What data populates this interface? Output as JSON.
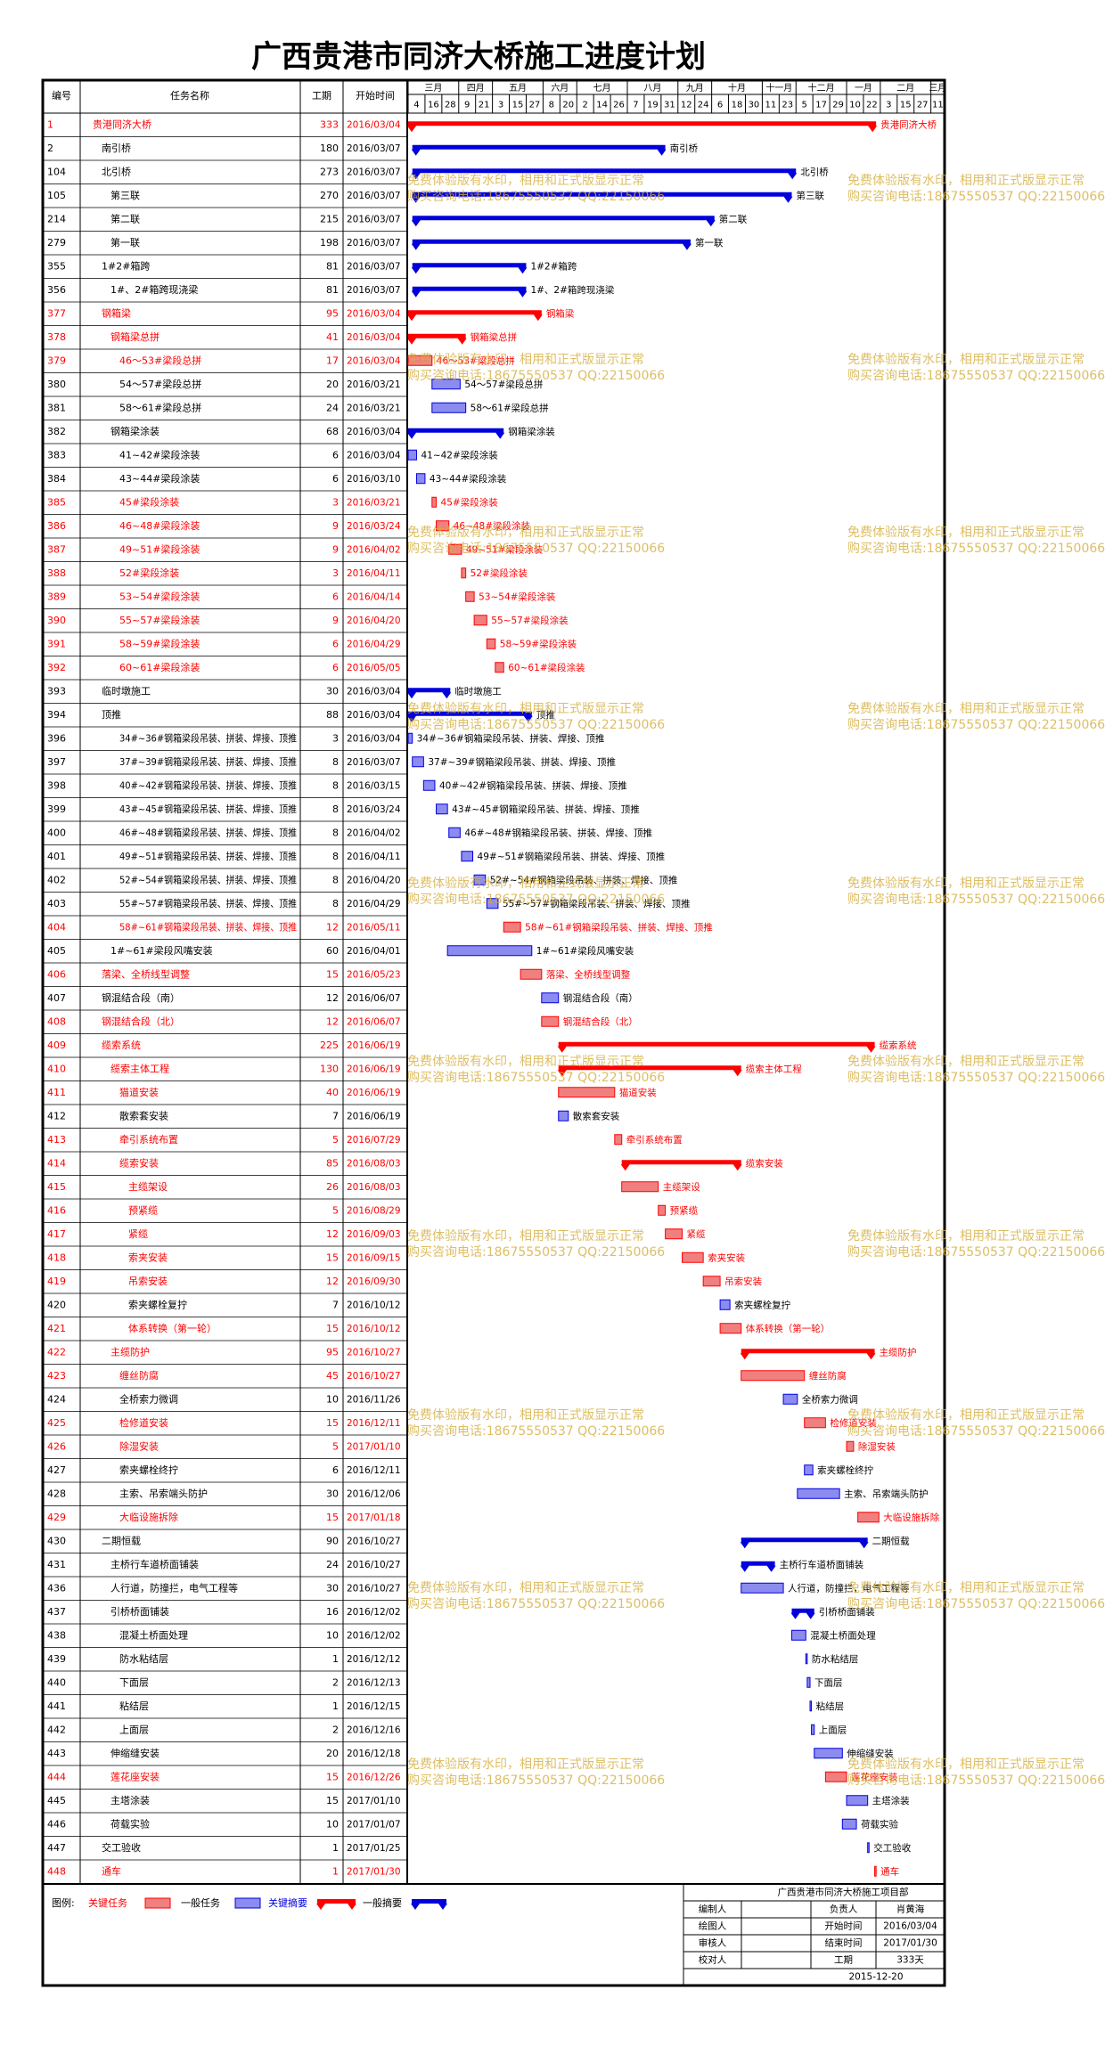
{
  "chart_data": {
    "type": "gantt",
    "title": "广西贵港市同济大桥施工进度计划",
    "columns": [
      "编号",
      "任务名称",
      "工期",
      "开始时间"
    ],
    "colors": {
      "critical": "#ff0000",
      "normal": "#0000dd",
      "critical_fill": "#f08080",
      "normal_fill": "#8c8cf0"
    },
    "timeline": {
      "months": [
        {
          "name": "三月",
          "days": [
            4,
            16,
            28
          ]
        },
        {
          "name": "四月",
          "days": [
            9,
            21
          ]
        },
        {
          "name": "五月",
          "days": [
            3,
            15,
            27
          ]
        },
        {
          "name": "六月",
          "days": [
            8,
            20
          ]
        },
        {
          "name": "七月",
          "days": [
            2,
            14,
            26
          ]
        },
        {
          "name": "八月",
          "days": [
            7,
            19,
            31
          ]
        },
        {
          "name": "九月",
          "days": [
            12,
            24
          ]
        },
        {
          "name": "十月",
          "days": [
            6,
            18,
            30
          ]
        },
        {
          "name": "十一月",
          "days": [
            11,
            23
          ]
        },
        {
          "name": "十二月",
          "days": [
            5,
            17,
            29
          ]
        },
        {
          "name": "一月",
          "days": [
            10,
            22
          ]
        },
        {
          "name": "二月",
          "days": [
            3,
            15,
            27
          ]
        },
        {
          "name": "三月",
          "days": [
            11
          ]
        }
      ]
    },
    "tasks": [
      {
        "id": 1,
        "name": "贵港同济大桥",
        "duration": 333,
        "start": "2016/03/04",
        "level": 0,
        "critical": true,
        "summary": true
      },
      {
        "id": 2,
        "name": "南引桥",
        "duration": 180,
        "start": "2016/03/07",
        "level": 1,
        "critical": false,
        "summary": true
      },
      {
        "id": 104,
        "name": "北引桥",
        "duration": 273,
        "start": "2016/03/07",
        "level": 1,
        "critical": false,
        "summary": true
      },
      {
        "id": 105,
        "name": "第三联",
        "duration": 270,
        "start": "2016/03/07",
        "level": 2,
        "critical": false,
        "summary": true
      },
      {
        "id": 214,
        "name": "第二联",
        "duration": 215,
        "start": "2016/03/07",
        "level": 2,
        "critical": false,
        "summary": true
      },
      {
        "id": 279,
        "name": "第一联",
        "duration": 198,
        "start": "2016/03/07",
        "level": 2,
        "critical": false,
        "summary": true
      },
      {
        "id": 355,
        "name": "1#2#箱跨",
        "duration": 81,
        "start": "2016/03/07",
        "level": 1,
        "critical": false,
        "summary": true
      },
      {
        "id": 356,
        "name": "1#、2#箱跨现浇梁",
        "duration": 81,
        "start": "2016/03/07",
        "level": 2,
        "critical": false,
        "summary": true
      },
      {
        "id": 377,
        "name": "钢箱梁",
        "duration": 95,
        "start": "2016/03/04",
        "level": 1,
        "critical": true,
        "summary": true
      },
      {
        "id": 378,
        "name": "钢箱梁总拼",
        "duration": 41,
        "start": "2016/03/04",
        "level": 2,
        "critical": true,
        "summary": true
      },
      {
        "id": 379,
        "name": "46～53#梁段总拼",
        "duration": 17,
        "start": "2016/03/04",
        "level": 3,
        "critical": true,
        "summary": false
      },
      {
        "id": 380,
        "name": "54～57#梁段总拼",
        "duration": 20,
        "start": "2016/03/21",
        "level": 3,
        "critical": false,
        "summary": false
      },
      {
        "id": 381,
        "name": "58～61#梁段总拼",
        "duration": 24,
        "start": "2016/03/21",
        "level": 3,
        "critical": false,
        "summary": false
      },
      {
        "id": 382,
        "name": "钢箱梁涂装",
        "duration": 68,
        "start": "2016/03/04",
        "level": 2,
        "critical": false,
        "summary": true
      },
      {
        "id": 383,
        "name": "41~42#梁段涂装",
        "duration": 6,
        "start": "2016/03/04",
        "level": 3,
        "critical": false,
        "summary": false
      },
      {
        "id": 384,
        "name": "43~44#梁段涂装",
        "duration": 6,
        "start": "2016/03/10",
        "level": 3,
        "critical": false,
        "summary": false
      },
      {
        "id": 385,
        "name": "45#梁段涂装",
        "duration": 3,
        "start": "2016/03/21",
        "level": 3,
        "critical": true,
        "summary": false
      },
      {
        "id": 386,
        "name": "46~48#梁段涂装",
        "duration": 9,
        "start": "2016/03/24",
        "level": 3,
        "critical": true,
        "summary": false
      },
      {
        "id": 387,
        "name": "49~51#梁段涂装",
        "duration": 9,
        "start": "2016/04/02",
        "level": 3,
        "critical": true,
        "summary": false
      },
      {
        "id": 388,
        "name": "52#梁段涂装",
        "duration": 3,
        "start": "2016/04/11",
        "level": 3,
        "critical": true,
        "summary": false
      },
      {
        "id": 389,
        "name": "53~54#梁段涂装",
        "duration": 6,
        "start": "2016/04/14",
        "level": 3,
        "critical": true,
        "summary": false
      },
      {
        "id": 390,
        "name": "55~57#梁段涂装",
        "duration": 9,
        "start": "2016/04/20",
        "level": 3,
        "critical": true,
        "summary": false
      },
      {
        "id": 391,
        "name": "58~59#梁段涂装",
        "duration": 6,
        "start": "2016/04/29",
        "level": 3,
        "critical": true,
        "summary": false
      },
      {
        "id": 392,
        "name": "60~61#梁段涂装",
        "duration": 6,
        "start": "2016/05/05",
        "level": 3,
        "critical": true,
        "summary": false
      },
      {
        "id": 393,
        "name": "临时墩施工",
        "duration": 30,
        "start": "2016/03/04",
        "level": 1,
        "critical": false,
        "summary": true
      },
      {
        "id": 394,
        "name": "顶推",
        "duration": 88,
        "start": "2016/03/04",
        "level": 1,
        "critical": false,
        "summary": true
      },
      {
        "id": 396,
        "name": "34#~36#钢箱梁段吊装、拼装、焊接、顶推",
        "duration": 3,
        "start": "2016/03/04",
        "level": 3,
        "critical": false,
        "summary": false
      },
      {
        "id": 397,
        "name": "37#~39#钢箱梁段吊装、拼装、焊接、顶推",
        "duration": 8,
        "start": "2016/03/07",
        "level": 3,
        "critical": false,
        "summary": false
      },
      {
        "id": 398,
        "name": "40#~42#钢箱梁段吊装、拼装、焊接、顶推",
        "duration": 8,
        "start": "2016/03/15",
        "level": 3,
        "critical": false,
        "summary": false
      },
      {
        "id": 399,
        "name": "43#~45#钢箱梁段吊装、拼装、焊接、顶推",
        "duration": 8,
        "start": "2016/03/24",
        "level": 3,
        "critical": false,
        "summary": false
      },
      {
        "id": 400,
        "name": "46#~48#钢箱梁段吊装、拼装、焊接、顶推",
        "duration": 8,
        "start": "2016/04/02",
        "level": 3,
        "critical": false,
        "summary": false
      },
      {
        "id": 401,
        "name": "49#~51#钢箱梁段吊装、拼装、焊接、顶推",
        "duration": 8,
        "start": "2016/04/11",
        "level": 3,
        "critical": false,
        "summary": false
      },
      {
        "id": 402,
        "name": "52#~54#钢箱梁段吊装、拼装、焊接、顶推",
        "duration": 8,
        "start": "2016/04/20",
        "level": 3,
        "critical": false,
        "summary": false
      },
      {
        "id": 403,
        "name": "55#~57#钢箱梁段吊装、拼装、焊接、顶推",
        "duration": 8,
        "start": "2016/04/29",
        "level": 3,
        "critical": false,
        "summary": false
      },
      {
        "id": 404,
        "name": "58#~61#钢箱梁段吊装、拼装、焊接、顶推",
        "duration": 12,
        "start": "2016/05/11",
        "level": 3,
        "critical": true,
        "summary": false
      },
      {
        "id": 405,
        "name": "1#~61#梁段风嘴安装",
        "duration": 60,
        "start": "2016/04/01",
        "level": 2,
        "critical": false,
        "summary": false
      },
      {
        "id": 406,
        "name": "落梁、全桥线型调整",
        "duration": 15,
        "start": "2016/05/23",
        "level": 1,
        "critical": true,
        "summary": false
      },
      {
        "id": 407,
        "name": "钢混结合段（南）",
        "duration": 12,
        "start": "2016/06/07",
        "level": 1,
        "critical": false,
        "summary": false
      },
      {
        "id": 408,
        "name": "钢混结合段（北）",
        "duration": 12,
        "start": "2016/06/07",
        "level": 1,
        "critical": true,
        "summary": false
      },
      {
        "id": 409,
        "name": "缆索系统",
        "duration": 225,
        "start": "2016/06/19",
        "level": 1,
        "critical": true,
        "summary": true
      },
      {
        "id": 410,
        "name": "缆索主体工程",
        "duration": 130,
        "start": "2016/06/19",
        "level": 2,
        "critical": true,
        "summary": true
      },
      {
        "id": 411,
        "name": "猫道安装",
        "duration": 40,
        "start": "2016/06/19",
        "level": 3,
        "critical": true,
        "summary": false
      },
      {
        "id": 412,
        "name": "散索套安装",
        "duration": 7,
        "start": "2016/06/19",
        "level": 3,
        "critical": false,
        "summary": false
      },
      {
        "id": 413,
        "name": "牵引系统布置",
        "duration": 5,
        "start": "2016/07/29",
        "level": 3,
        "critical": true,
        "summary": false
      },
      {
        "id": 414,
        "name": "缆索安装",
        "duration": 85,
        "start": "2016/08/03",
        "level": 3,
        "critical": true,
        "summary": true
      },
      {
        "id": 415,
        "name": "主缆架设",
        "duration": 26,
        "start": "2016/08/03",
        "level": 4,
        "critical": true,
        "summary": false
      },
      {
        "id": 416,
        "name": "预紧缆",
        "duration": 5,
        "start": "2016/08/29",
        "level": 4,
        "critical": true,
        "summary": false
      },
      {
        "id": 417,
        "name": "紧缆",
        "duration": 12,
        "start": "2016/09/03",
        "level": 4,
        "critical": true,
        "summary": false
      },
      {
        "id": 418,
        "name": "索夹安装",
        "duration": 15,
        "start": "2016/09/15",
        "level": 4,
        "critical": true,
        "summary": false
      },
      {
        "id": 419,
        "name": "吊索安装",
        "duration": 12,
        "start": "2016/09/30",
        "level": 4,
        "critical": true,
        "summary": false
      },
      {
        "id": 420,
        "name": "索夹螺栓复拧",
        "duration": 7,
        "start": "2016/10/12",
        "level": 4,
        "critical": false,
        "summary": false
      },
      {
        "id": 421,
        "name": "体系转换（第一轮）",
        "duration": 15,
        "start": "2016/10/12",
        "level": 4,
        "critical": true,
        "summary": false
      },
      {
        "id": 422,
        "name": "主缆防护",
        "duration": 95,
        "start": "2016/10/27",
        "level": 2,
        "critical": true,
        "summary": true
      },
      {
        "id": 423,
        "name": "缠丝防腐",
        "duration": 45,
        "start": "2016/10/27",
        "level": 3,
        "critical": true,
        "summary": false
      },
      {
        "id": 424,
        "name": "全桥索力微调",
        "duration": 10,
        "start": "2016/11/26",
        "level": 3,
        "critical": false,
        "summary": false
      },
      {
        "id": 425,
        "name": "检修道安装",
        "duration": 15,
        "start": "2016/12/11",
        "level": 3,
        "critical": true,
        "summary": false
      },
      {
        "id": 426,
        "name": "除湿安装",
        "duration": 5,
        "start": "2017/01/10",
        "level": 3,
        "critical": true,
        "summary": false
      },
      {
        "id": 427,
        "name": "索夹螺栓终拧",
        "duration": 6,
        "start": "2016/12/11",
        "level": 3,
        "critical": false,
        "summary": false
      },
      {
        "id": 428,
        "name": "主索、吊索端头防护",
        "duration": 30,
        "start": "2016/12/06",
        "level": 3,
        "critical": false,
        "summary": false
      },
      {
        "id": 429,
        "name": "大临设施拆除",
        "duration": 15,
        "start": "2017/01/18",
        "level": 3,
        "critical": true,
        "summary": false
      },
      {
        "id": 430,
        "name": "二期恒载",
        "duration": 90,
        "start": "2016/10/27",
        "level": 1,
        "critical": false,
        "summary": true
      },
      {
        "id": 431,
        "name": "主桥行车道桥面铺装",
        "duration": 24,
        "start": "2016/10/27",
        "level": 2,
        "critical": false,
        "summary": true
      },
      {
        "id": 436,
        "name": "人行道，防撞拦，电气工程等",
        "duration": 30,
        "start": "2016/10/27",
        "level": 2,
        "critical": false,
        "summary": false
      },
      {
        "id": 437,
        "name": "引桥桥面铺装",
        "duration": 16,
        "start": "2016/12/02",
        "level": 2,
        "critical": false,
        "summary": true
      },
      {
        "id": 438,
        "name": "混凝土桥面处理",
        "duration": 10,
        "start": "2016/12/02",
        "level": 3,
        "critical": false,
        "summary": false
      },
      {
        "id": 439,
        "name": "防水粘结层",
        "duration": 1,
        "start": "2016/12/12",
        "level": 3,
        "critical": false,
        "summary": false
      },
      {
        "id": 440,
        "name": "下面层",
        "duration": 2,
        "start": "2016/12/13",
        "level": 3,
        "critical": false,
        "summary": false
      },
      {
        "id": 441,
        "name": "粘结层",
        "duration": 1,
        "start": "2016/12/15",
        "level": 3,
        "critical": false,
        "summary": false
      },
      {
        "id": 442,
        "name": "上面层",
        "duration": 2,
        "start": "2016/12/16",
        "level": 3,
        "critical": false,
        "summary": false
      },
      {
        "id": 443,
        "name": "伸缩缝安装",
        "duration": 20,
        "start": "2016/12/18",
        "level": 2,
        "critical": false,
        "summary": false
      },
      {
        "id": 444,
        "name": "莲花座安装",
        "duration": 15,
        "start": "2016/12/26",
        "level": 2,
        "critical": true,
        "summary": false
      },
      {
        "id": 445,
        "name": "主塔涂装",
        "duration": 15,
        "start": "2017/01/10",
        "level": 2,
        "critical": false,
        "summary": false
      },
      {
        "id": 446,
        "name": "荷载实验",
        "duration": 10,
        "start": "2017/01/07",
        "level": 2,
        "critical": false,
        "summary": false
      },
      {
        "id": 447,
        "name": "交工验收",
        "duration": 1,
        "start": "2017/01/25",
        "level": 1,
        "critical": false,
        "summary": false
      },
      {
        "id": 448,
        "name": "通车",
        "duration": 1,
        "start": "2017/01/30",
        "level": 1,
        "critical": true,
        "summary": false
      }
    ],
    "legend": {
      "title": "图例:",
      "items": [
        "关键任务",
        "一般任务",
        "关键摘要",
        "一般摘要"
      ]
    },
    "info": {
      "org": "广西贵港市同济大桥施工项目部",
      "rows": [
        {
          "label": "编制人",
          "key": "负责人",
          "value": "肖黄海"
        },
        {
          "label": "绘图人",
          "key": "开始时间",
          "value": "2016/03/04"
        },
        {
          "label": "审核人",
          "key": "结束时间",
          "value": "2017/01/30"
        },
        {
          "label": "校对人",
          "key": "工期",
          "value": "333天"
        }
      ],
      "date": "2015-12-20"
    },
    "watermark": [
      "免费体验版有水印，相用和正式版显示正常",
      "购买咨询电话:18675550537 QQ:22150066"
    ]
  }
}
